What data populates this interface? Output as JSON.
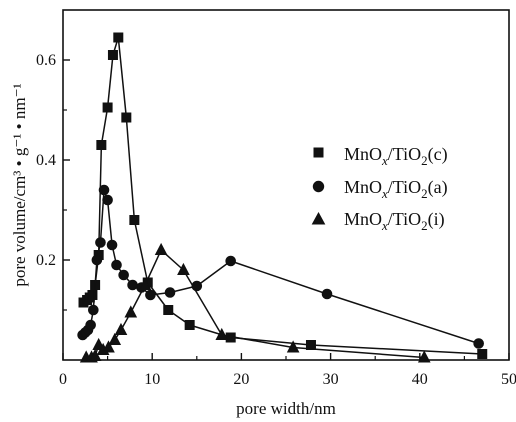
{
  "chart_data": {
    "type": "line",
    "title": "",
    "xlabel": "pore width/nm",
    "ylabel": "pore volume/cm³ • g⁻¹ • nm⁻¹",
    "xlim": [
      0,
      50
    ],
    "ylim": [
      0,
      0.7
    ],
    "x_ticks": [
      0,
      10,
      20,
      30,
      40,
      50
    ],
    "y_ticks": [
      0.2,
      0.4,
      0.6
    ],
    "x_tick_labels": [
      "0",
      "10",
      "20",
      "30",
      "40",
      "50"
    ],
    "y_tick_labels": [
      "0.2",
      "0.4",
      "0.6"
    ],
    "grid": false,
    "legend_position": "right",
    "series": [
      {
        "name_main": "MnO",
        "name_sub_x": "x",
        "name_mid": "/TiO",
        "name_sub_2": "2",
        "name_end": "(c)",
        "marker": "square",
        "points": [
          {
            "x": 2.3,
            "y": 0.115
          },
          {
            "x": 2.7,
            "y": 0.12
          },
          {
            "x": 3.0,
            "y": 0.125
          },
          {
            "x": 3.3,
            "y": 0.13
          },
          {
            "x": 3.6,
            "y": 0.15
          },
          {
            "x": 4.0,
            "y": 0.21
          },
          {
            "x": 4.3,
            "y": 0.43
          },
          {
            "x": 5.0,
            "y": 0.505
          },
          {
            "x": 5.6,
            "y": 0.61
          },
          {
            "x": 6.2,
            "y": 0.645
          },
          {
            "x": 7.1,
            "y": 0.485
          },
          {
            "x": 8.0,
            "y": 0.28
          },
          {
            "x": 9.5,
            "y": 0.155
          },
          {
            "x": 11.8,
            "y": 0.1
          },
          {
            "x": 14.2,
            "y": 0.07
          },
          {
            "x": 18.8,
            "y": 0.045
          },
          {
            "x": 27.8,
            "y": 0.03
          },
          {
            "x": 47.0,
            "y": 0.012
          }
        ]
      },
      {
        "name_main": "MnO",
        "name_sub_x": "x",
        "name_mid": "/TiO",
        "name_sub_2": "2",
        "name_end": "(a)",
        "marker": "circle",
        "points": [
          {
            "x": 2.2,
            "y": 0.05
          },
          {
            "x": 2.5,
            "y": 0.055
          },
          {
            "x": 2.8,
            "y": 0.06
          },
          {
            "x": 3.1,
            "y": 0.07
          },
          {
            "x": 3.4,
            "y": 0.1
          },
          {
            "x": 3.8,
            "y": 0.2
          },
          {
            "x": 4.2,
            "y": 0.235
          },
          {
            "x": 4.6,
            "y": 0.34
          },
          {
            "x": 5.0,
            "y": 0.32
          },
          {
            "x": 5.5,
            "y": 0.23
          },
          {
            "x": 6.0,
            "y": 0.19
          },
          {
            "x": 6.8,
            "y": 0.17
          },
          {
            "x": 7.8,
            "y": 0.15
          },
          {
            "x": 8.8,
            "y": 0.145
          },
          {
            "x": 9.8,
            "y": 0.13
          },
          {
            "x": 12.0,
            "y": 0.135
          },
          {
            "x": 15.0,
            "y": 0.148
          },
          {
            "x": 18.8,
            "y": 0.198
          },
          {
            "x": 29.6,
            "y": 0.132
          },
          {
            "x": 46.6,
            "y": 0.033
          }
        ]
      },
      {
        "name_main": "MnO",
        "name_sub_x": "x",
        "name_mid": "/TiO",
        "name_sub_2": "2",
        "name_end": "(i)",
        "marker": "triangle",
        "points": [
          {
            "x": 2.6,
            "y": 0.005
          },
          {
            "x": 3.2,
            "y": 0.005
          },
          {
            "x": 3.6,
            "y": 0.008
          },
          {
            "x": 4.0,
            "y": 0.03
          },
          {
            "x": 4.5,
            "y": 0.02
          },
          {
            "x": 5.1,
            "y": 0.025
          },
          {
            "x": 5.8,
            "y": 0.04
          },
          {
            "x": 6.5,
            "y": 0.06
          },
          {
            "x": 7.6,
            "y": 0.095
          },
          {
            "x": 9.2,
            "y": 0.15
          },
          {
            "x": 11.0,
            "y": 0.22
          },
          {
            "x": 13.5,
            "y": 0.18
          },
          {
            "x": 17.8,
            "y": 0.05
          },
          {
            "x": 25.8,
            "y": 0.025
          },
          {
            "x": 40.5,
            "y": 0.005
          }
        ]
      }
    ]
  }
}
